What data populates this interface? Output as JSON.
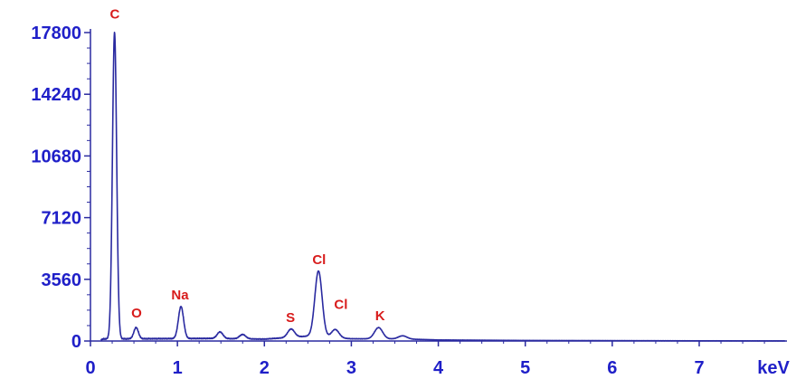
{
  "chart_data": {
    "type": "line",
    "title": "",
    "xlabel": "",
    "ylabel": "",
    "x_unit_label": "keV",
    "xlim": [
      0,
      8
    ],
    "ylim": [
      0,
      17800
    ],
    "grid": false,
    "colors": {
      "axis_text": "#1f1fc8",
      "line": "#2a2aa0",
      "peak_label": "#d81c1c"
    },
    "x_ticks": [
      0,
      1,
      2,
      3,
      4,
      5,
      6,
      7
    ],
    "y_ticks": [
      0,
      3560,
      7120,
      10680,
      14240,
      17800
    ],
    "x_tick_labels": [
      "0",
      "1",
      "2",
      "3",
      "4",
      "5",
      "6",
      "7"
    ],
    "y_tick_labels": [
      "0",
      "3560",
      "7120",
      "10680",
      "14240",
      "17800"
    ],
    "baseline": [
      {
        "x": 0.0,
        "y": 0
      },
      {
        "x": 0.1,
        "y": 40
      },
      {
        "x": 0.15,
        "y": 120
      },
      {
        "x": 1.4,
        "y": 150
      },
      {
        "x": 2.0,
        "y": 110
      },
      {
        "x": 2.5,
        "y": 280
      },
      {
        "x": 3.0,
        "y": 130
      },
      {
        "x": 3.6,
        "y": 120
      },
      {
        "x": 4.0,
        "y": 60
      },
      {
        "x": 5.0,
        "y": 30
      },
      {
        "x": 6.0,
        "y": 20
      },
      {
        "x": 7.0,
        "y": 10
      },
      {
        "x": 8.0,
        "y": 5
      }
    ],
    "peaks": [
      {
        "element": "C",
        "x": 0.277,
        "y": 17700
      },
      {
        "element": "O",
        "x": 0.525,
        "y": 650
      },
      {
        "element": "Na",
        "x": 1.041,
        "y": 1850
      },
      {
        "element": "",
        "x": 1.49,
        "y": 380
      },
      {
        "element": "",
        "x": 1.75,
        "y": 250
      },
      {
        "element": "S",
        "x": 2.307,
        "y": 480
      },
      {
        "element": "Cl",
        "x": 2.622,
        "y": 3800
      },
      {
        "element": "Cl",
        "x": 2.815,
        "y": 480
      },
      {
        "element": "K",
        "x": 3.313,
        "y": 650
      },
      {
        "element": "",
        "x": 3.59,
        "y": 180
      }
    ],
    "peak_labels": [
      {
        "text": "C",
        "x": 0.28,
        "y": 18600
      },
      {
        "text": "O",
        "x": 0.53,
        "y": 1350
      },
      {
        "text": "Na",
        "x": 1.03,
        "y": 2400
      },
      {
        "text": "S",
        "x": 2.3,
        "y": 1100
      },
      {
        "text": "Cl",
        "x": 2.63,
        "y": 4450
      },
      {
        "text": "Cl",
        "x": 2.88,
        "y": 1850
      },
      {
        "text": "K",
        "x": 3.33,
        "y": 1200
      }
    ]
  }
}
